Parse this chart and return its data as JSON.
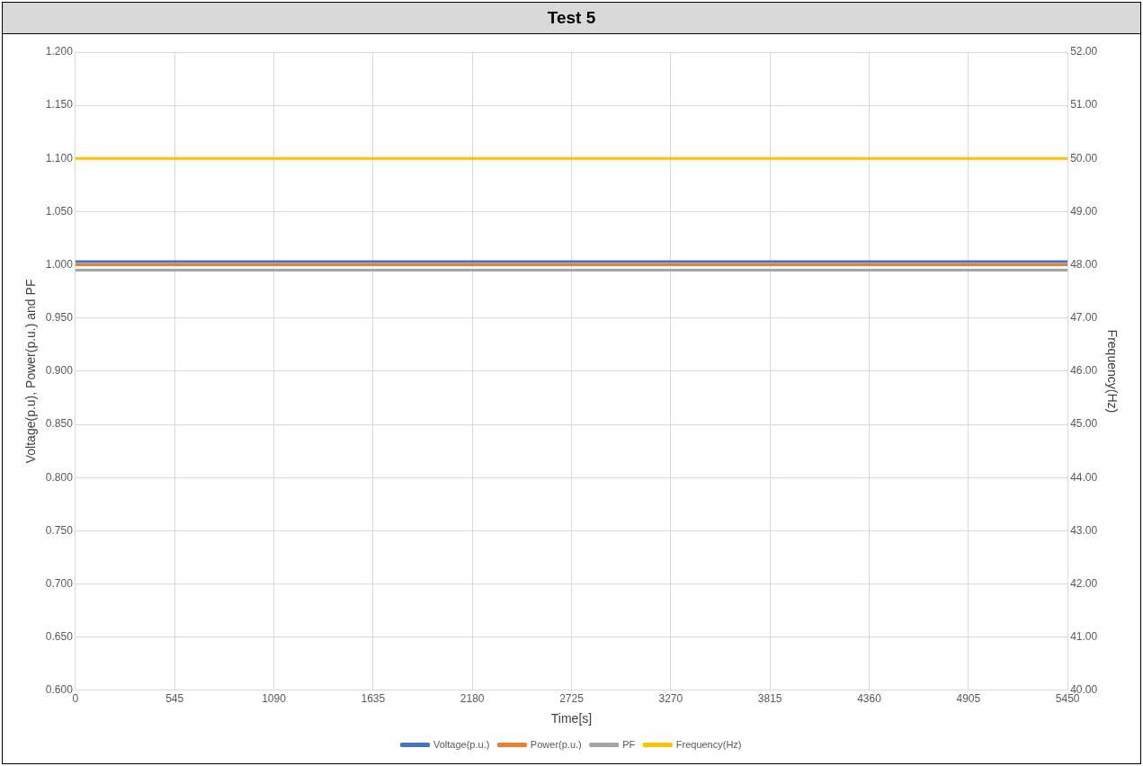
{
  "chart_data": {
    "type": "line",
    "title": "Test 5",
    "xlabel": "Time[s]",
    "ylabel": "Voltage(p.u), Power(p.u.) and PF",
    "y2label": "Frequency(Hz)",
    "xlim": [
      0,
      5450
    ],
    "xticks": [
      0,
      545,
      1090,
      1635,
      2180,
      2725,
      3270,
      3815,
      4360,
      4905,
      5450
    ],
    "ylim": [
      0.6,
      1.2
    ],
    "yticks": [
      {
        "value": 0.6,
        "label": "0.600"
      },
      {
        "value": 0.65,
        "label": "0.650"
      },
      {
        "value": 0.7,
        "label": "0.700"
      },
      {
        "value": 0.75,
        "label": "0.750"
      },
      {
        "value": 0.8,
        "label": "0.800"
      },
      {
        "value": 0.85,
        "label": "0.850"
      },
      {
        "value": 0.9,
        "label": "0.900"
      },
      {
        "value": 0.95,
        "label": "0.950"
      },
      {
        "value": 1.0,
        "label": "1.000"
      },
      {
        "value": 1.05,
        "label": "1.050"
      },
      {
        "value": 1.1,
        "label": "1.100"
      },
      {
        "value": 1.15,
        "label": "1.150"
      },
      {
        "value": 1.2,
        "label": "1.200"
      }
    ],
    "y2lim": [
      40,
      52
    ],
    "y2ticks": [
      {
        "value": 40,
        "label": "40.00"
      },
      {
        "value": 41,
        "label": "41.00"
      },
      {
        "value": 42,
        "label": "42.00"
      },
      {
        "value": 43,
        "label": "43.00"
      },
      {
        "value": 44,
        "label": "44.00"
      },
      {
        "value": 45,
        "label": "45.00"
      },
      {
        "value": 46,
        "label": "46.00"
      },
      {
        "value": 47,
        "label": "47.00"
      },
      {
        "value": 48,
        "label": "48.00"
      },
      {
        "value": 49,
        "label": "49.00"
      },
      {
        "value": 50,
        "label": "50.00"
      },
      {
        "value": 51,
        "label": "51.00"
      },
      {
        "value": 52,
        "label": "52.00"
      }
    ],
    "x": [
      0,
      5450
    ],
    "series": [
      {
        "name": "Voltage(p.u.)",
        "color": "#4472c4",
        "values": [
          1.003,
          1.003
        ]
      },
      {
        "name": "Power(p.u.)",
        "color": "#ed7d31",
        "values": [
          1.0,
          1.0
        ]
      },
      {
        "name": "PF",
        "color": "#a5a5a5",
        "values": [
          0.995,
          0.995
        ]
      },
      {
        "name": "Frequency(Hz)",
        "color": "#ffc000",
        "values": [
          50,
          50
        ],
        "axis": "y2"
      }
    ],
    "grid": true,
    "legend": "bottom",
    "marker": "none",
    "line_style": "solid"
  }
}
